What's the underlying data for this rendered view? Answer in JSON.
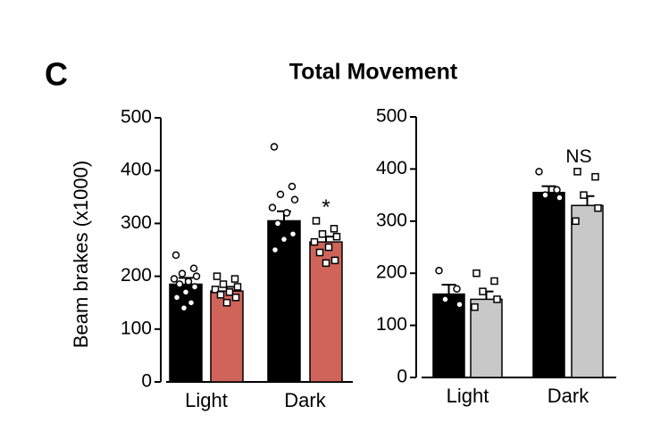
{
  "panel_label": "C",
  "title": "Total Movement",
  "chart_data": [
    {
      "type": "bar",
      "y_label": "Beam brakes (x1000)",
      "categories": [
        "Light",
        "Dark"
      ],
      "ylim": [
        0,
        500
      ],
      "yticks": [
        0,
        100,
        200,
        300,
        400,
        500
      ],
      "series": [
        {
          "color": "#000000",
          "values": [
            185,
            305
          ],
          "errors": [
            12,
            18
          ],
          "points": [
            [
              240,
              215,
              205,
              200,
              195,
              190,
              185,
              180,
              170,
              160,
              150,
              140
            ],
            [
              445,
              370,
              355,
              345,
              330,
              320,
              300,
              280,
              270,
              250
            ]
          ]
        },
        {
          "color": "#d0645a",
          "values": [
            172,
            265
          ],
          "errors": [
            8,
            10
          ],
          "points": [
            [
              200,
              195,
              185,
              180,
              175,
              170,
              165,
              160,
              150
            ],
            [
              305,
              290,
              280,
              275,
              265,
              255,
              245,
              230,
              225
            ]
          ],
          "annotations": [
            null,
            "*"
          ]
        }
      ]
    },
    {
      "type": "bar",
      "categories": [
        "Light",
        "Dark"
      ],
      "ylim": [
        0,
        500
      ],
      "yticks": [
        0,
        100,
        200,
        300,
        400,
        500
      ],
      "annotations": [
        null,
        "NS"
      ],
      "series": [
        {
          "color": "#000000",
          "values": [
            160,
            355
          ],
          "errors": [
            18,
            12
          ],
          "points": [
            [
              205,
              170,
              150,
              140
            ],
            [
              395,
              360,
              350,
              345
            ]
          ]
        },
        {
          "color": "#c8c8c8",
          "values": [
            150,
            330
          ],
          "errors": [
            15,
            18
          ],
          "points": [
            [
              200,
              185,
              165,
              150,
              135
            ],
            [
              395,
              385,
              350,
              325,
              300
            ]
          ]
        }
      ]
    }
  ]
}
